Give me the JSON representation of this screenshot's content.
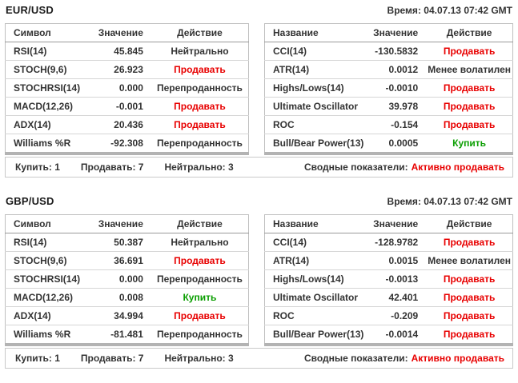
{
  "colors": {
    "sell": "#e80000",
    "buy": "#0a9e00",
    "text": "#333333"
  },
  "panels": [
    {
      "pair": "EUR/USD",
      "time": "Время: 04.07.13 07:42 GMT",
      "left": {
        "headers": [
          "Символ",
          "Значение",
          "Действие"
        ],
        "rows": [
          {
            "name": "RSI(14)",
            "value": "45.845",
            "action": "Нейтрально",
            "tone": "neutral"
          },
          {
            "name": "STOCH(9,6)",
            "value": "26.923",
            "action": "Продавать",
            "tone": "sell"
          },
          {
            "name": "STOCHRSI(14)",
            "value": "0.000",
            "action": "Перепроданность",
            "tone": "neutral"
          },
          {
            "name": "MACD(12,26)",
            "value": "-0.001",
            "action": "Продавать",
            "tone": "sell"
          },
          {
            "name": "ADX(14)",
            "value": "20.436",
            "action": "Продавать",
            "tone": "sell"
          },
          {
            "name": "Williams %R",
            "value": "-92.308",
            "action": "Перепроданность",
            "tone": "neutral"
          }
        ]
      },
      "right": {
        "headers": [
          "Название",
          "Значение",
          "Действие"
        ],
        "rows": [
          {
            "name": "CCI(14)",
            "value": "-130.5832",
            "action": "Продавать",
            "tone": "sell"
          },
          {
            "name": "ATR(14)",
            "value": "0.0012",
            "action": "Менее волатилен",
            "tone": "neutral"
          },
          {
            "name": "Highs/Lows(14)",
            "value": "-0.0010",
            "action": "Продавать",
            "tone": "sell"
          },
          {
            "name": "Ultimate Oscillator",
            "value": "39.978",
            "action": "Продавать",
            "tone": "sell"
          },
          {
            "name": "ROC",
            "value": "-0.154",
            "action": "Продавать",
            "tone": "sell"
          },
          {
            "name": "Bull/Bear Power(13)",
            "value": "0.0005",
            "action": "Купить",
            "tone": "buy"
          }
        ]
      },
      "footer": {
        "buy_count": "Купить: 1",
        "sell_count": "Продавать: 7",
        "neutral_count": "Нейтрально: 3",
        "summary_label": "Сводные показатели:",
        "summary_value": "Активно продавать",
        "summary_tone": "sell"
      }
    },
    {
      "pair": "GBP/USD",
      "time": "Время: 04.07.13 07:42 GMT",
      "left": {
        "headers": [
          "Символ",
          "Значение",
          "Действие"
        ],
        "rows": [
          {
            "name": "RSI(14)",
            "value": "50.387",
            "action": "Нейтрально",
            "tone": "neutral"
          },
          {
            "name": "STOCH(9,6)",
            "value": "36.691",
            "action": "Продавать",
            "tone": "sell"
          },
          {
            "name": "STOCHRSI(14)",
            "value": "0.000",
            "action": "Перепроданность",
            "tone": "neutral"
          },
          {
            "name": "MACD(12,26)",
            "value": "0.008",
            "action": "Купить",
            "tone": "buy"
          },
          {
            "name": "ADX(14)",
            "value": "34.994",
            "action": "Продавать",
            "tone": "sell"
          },
          {
            "name": "Williams %R",
            "value": "-81.481",
            "action": "Перепроданность",
            "tone": "neutral"
          }
        ]
      },
      "right": {
        "headers": [
          "Название",
          "Значение",
          "Действие"
        ],
        "rows": [
          {
            "name": "CCI(14)",
            "value": "-128.9782",
            "action": "Продавать",
            "tone": "sell"
          },
          {
            "name": "ATR(14)",
            "value": "0.0015",
            "action": "Менее волатилен",
            "tone": "neutral"
          },
          {
            "name": "Highs/Lows(14)",
            "value": "-0.0013",
            "action": "Продавать",
            "tone": "sell"
          },
          {
            "name": "Ultimate Oscillator",
            "value": "42.401",
            "action": "Продавать",
            "tone": "sell"
          },
          {
            "name": "ROC",
            "value": "-0.209",
            "action": "Продавать",
            "tone": "sell"
          },
          {
            "name": "Bull/Bear Power(13)",
            "value": "-0.0014",
            "action": "Продавать",
            "tone": "sell"
          }
        ]
      },
      "footer": {
        "buy_count": "Купить: 1",
        "sell_count": "Продавать: 7",
        "neutral_count": "Нейтрально: 3",
        "summary_label": "Сводные показатели:",
        "summary_value": "Активно продавать",
        "summary_tone": "sell"
      }
    }
  ]
}
